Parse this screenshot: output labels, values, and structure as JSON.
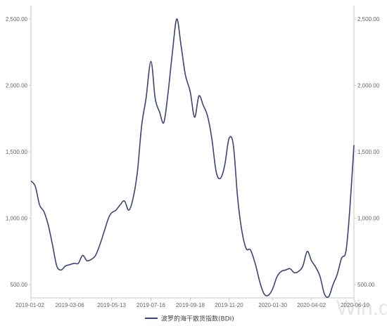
{
  "watermark": "Win.d",
  "chart_data": {
    "type": "line",
    "title": "",
    "xlabel": "",
    "ylabel": "",
    "ylim": [
      400,
      2600
    ],
    "y_ticks": [
      "500.00",
      "1,000.00",
      "1,500.00",
      "2,000.00",
      "2,500.00"
    ],
    "y_tick_values": [
      500,
      1000,
      1500,
      2000,
      2500
    ],
    "x_ticks": [
      "2019-01-02",
      "2019-03-06",
      "2019-05-13",
      "2019-07-16",
      "2019-09-18",
      "2019-11-20",
      "2020-01-30",
      "2020-04-02",
      "2020-06-10"
    ],
    "grid": false,
    "legend_position": "bottom-center",
    "colors": {
      "line": "#3b4475",
      "axis": "#c8c8c8",
      "text": "#666666"
    },
    "series": [
      {
        "name": "波罗的海干散货指数(BDI)",
        "x": [
          "2019-01-02",
          "2019-01-09",
          "2019-01-16",
          "2019-01-23",
          "2019-01-30",
          "2019-02-06",
          "2019-02-13",
          "2019-02-20",
          "2019-02-27",
          "2019-03-06",
          "2019-03-13",
          "2019-03-20",
          "2019-03-27",
          "2019-04-03",
          "2019-04-10",
          "2019-04-17",
          "2019-04-24",
          "2019-05-01",
          "2019-05-08",
          "2019-05-13",
          "2019-05-20",
          "2019-05-27",
          "2019-06-03",
          "2019-06-10",
          "2019-06-17",
          "2019-06-24",
          "2019-07-01",
          "2019-07-08",
          "2019-07-16",
          "2019-07-23",
          "2019-07-30",
          "2019-08-06",
          "2019-08-13",
          "2019-08-20",
          "2019-08-27",
          "2019-09-03",
          "2019-09-10",
          "2019-09-18",
          "2019-09-25",
          "2019-10-02",
          "2019-10-09",
          "2019-10-16",
          "2019-10-23",
          "2019-10-30",
          "2019-11-06",
          "2019-11-13",
          "2019-11-20",
          "2019-11-27",
          "2019-12-04",
          "2019-12-11",
          "2019-12-18",
          "2019-12-25",
          "2020-01-02",
          "2020-01-09",
          "2020-01-16",
          "2020-01-23",
          "2020-01-30",
          "2020-02-06",
          "2020-02-13",
          "2020-02-20",
          "2020-02-27",
          "2020-03-05",
          "2020-03-12",
          "2020-03-19",
          "2020-03-26",
          "2020-04-02",
          "2020-04-09",
          "2020-04-16",
          "2020-04-23",
          "2020-04-30",
          "2020-05-07",
          "2020-05-14",
          "2020-05-21",
          "2020-05-28",
          "2020-06-03",
          "2020-06-10"
        ],
        "values": [
          1280,
          1240,
          1100,
          1050,
          950,
          800,
          640,
          610,
          640,
          650,
          660,
          660,
          720,
          680,
          690,
          720,
          800,
          900,
          1000,
          1040,
          1060,
          1100,
          1130,
          1060,
          1150,
          1350,
          1700,
          1900,
          2180,
          1900,
          1800,
          1720,
          1950,
          2250,
          2500,
          2300,
          2080,
          1950,
          1760,
          1920,
          1850,
          1770,
          1600,
          1350,
          1300,
          1400,
          1600,
          1550,
          1150,
          900,
          770,
          760,
          650,
          520,
          430,
          420,
          470,
          560,
          600,
          610,
          620,
          590,
          600,
          640,
          750,
          680,
          630,
          560,
          430,
          410,
          500,
          580,
          700,
          750,
          1050,
          1550
        ]
      }
    ]
  }
}
